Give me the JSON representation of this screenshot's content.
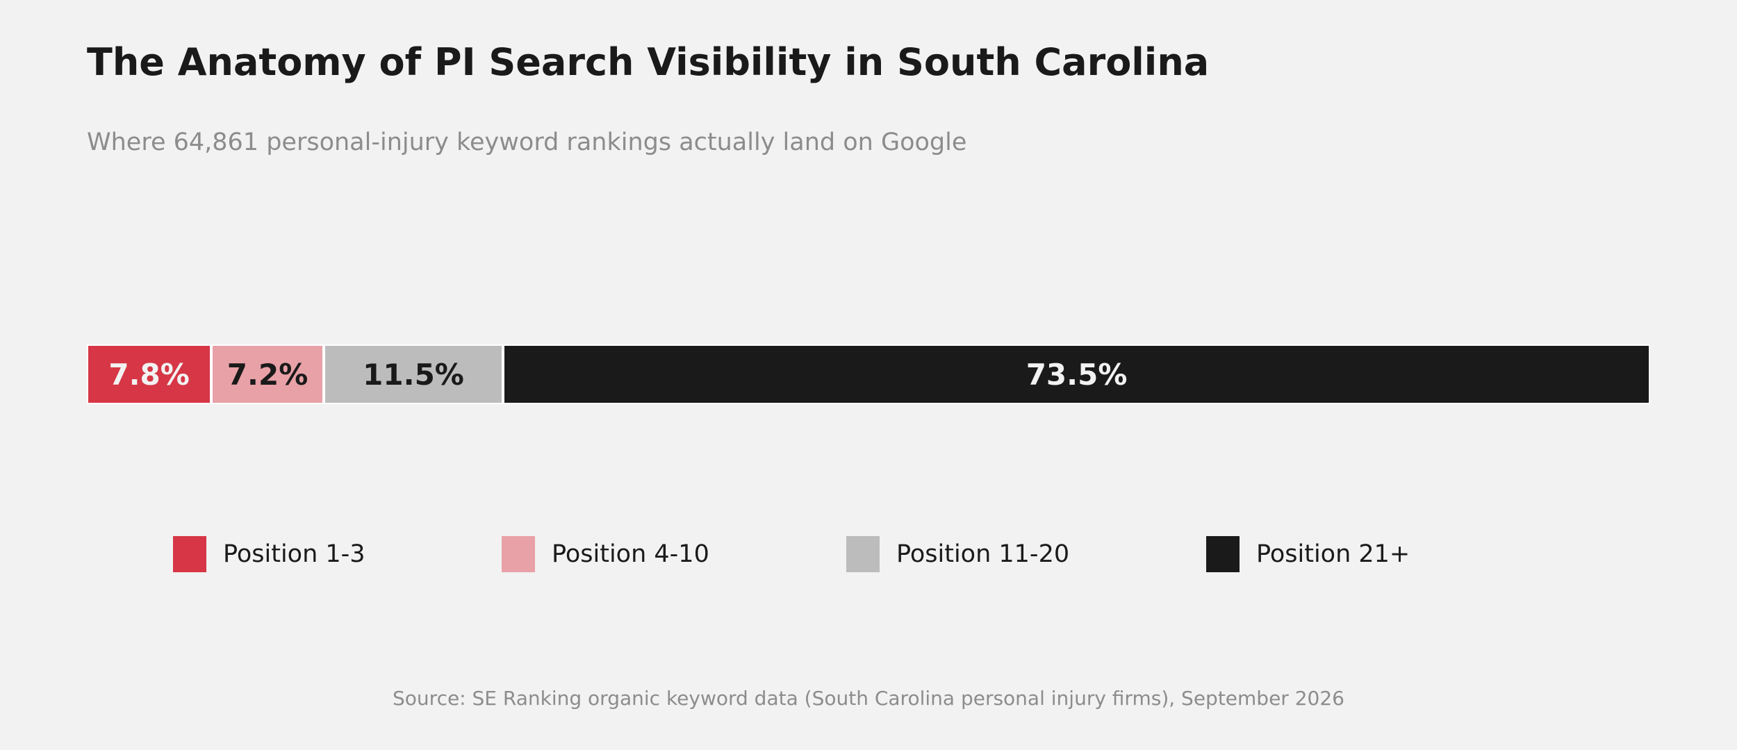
{
  "chart_data": {
    "type": "bar",
    "orientation": "horizontal-stacked-100",
    "title": "The Anatomy of PI Search Visibility in South Carolina",
    "subtitle": "Where 64,861 personal-injury keyword rankings actually land on Google",
    "source": "Source: SE Ranking organic keyword data (South Carolina personal injury firms), September 2026",
    "segments": [
      {
        "name": "Position 1-3",
        "value": 7.8,
        "label": "7.8%",
        "color": "#d63645",
        "text_color": "#f2f2f2"
      },
      {
        "name": "Position 4-10",
        "value": 7.2,
        "label": "7.2%",
        "color": "#e8a1a7",
        "text_color": "#1a1a1a"
      },
      {
        "name": "Position 11-20",
        "value": 11.5,
        "label": "11.5%",
        "color": "#bcbcbc",
        "text_color": "#1a1a1a"
      },
      {
        "name": "Position 21+",
        "value": 73.5,
        "label": "73.5%",
        "color": "#1a1a1a",
        "text_color": "#f2f2f2"
      }
    ],
    "xlim": [
      0,
      100
    ],
    "grid": false,
    "legend_position": "bottom"
  }
}
